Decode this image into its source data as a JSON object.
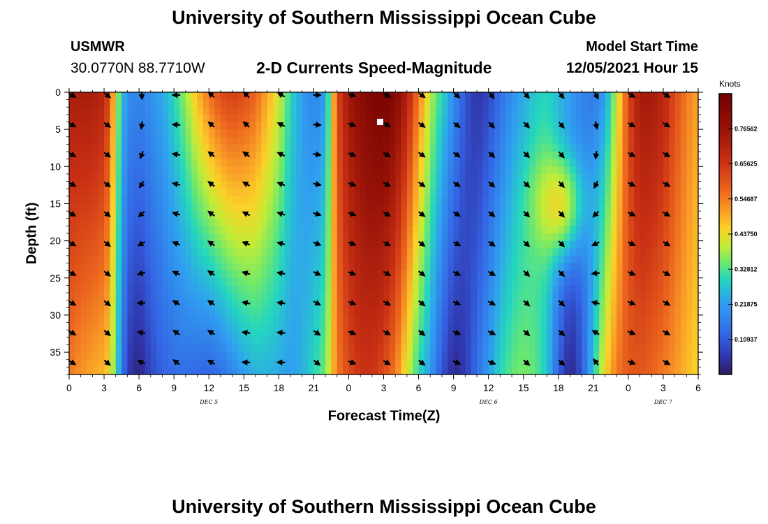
{
  "header": {
    "title": "University of Southern Mississippi Ocean Cube",
    "station": "USMWR",
    "coordinates": "30.0770N  88.7710W",
    "subtitle": "2-D Currents Speed-Magnitude",
    "model_start_label": "Model Start Time",
    "model_start_value": "12/05/2021 Hour 15"
  },
  "footer": {
    "title": "University of Southern Mississippi Ocean Cube"
  },
  "chart_data": {
    "type": "heatmap",
    "title": "2-D Currents Speed-Magnitude",
    "xlabel": "Forecast Time(Z)",
    "ylabel": "Depth (ft)",
    "x_range_hours": [
      0,
      54
    ],
    "x_ticks": [
      {
        "hour": 0,
        "label": "0"
      },
      {
        "hour": 3,
        "label": "3"
      },
      {
        "hour": 6,
        "label": "6"
      },
      {
        "hour": 9,
        "label": "9"
      },
      {
        "hour": 12,
        "label": "12"
      },
      {
        "hour": 15,
        "label": "15"
      },
      {
        "hour": 18,
        "label": "18"
      },
      {
        "hour": 21,
        "label": "21"
      },
      {
        "hour": 24,
        "label": "0"
      },
      {
        "hour": 27,
        "label": "3"
      },
      {
        "hour": 30,
        "label": "6"
      },
      {
        "hour": 33,
        "label": "9"
      },
      {
        "hour": 36,
        "label": "12"
      },
      {
        "hour": 39,
        "label": "15"
      },
      {
        "hour": 42,
        "label": "18"
      },
      {
        "hour": 45,
        "label": "21"
      },
      {
        "hour": 48,
        "label": "0"
      },
      {
        "hour": 51,
        "label": "3"
      },
      {
        "hour": 54,
        "label": "6"
      }
    ],
    "date_labels": [
      {
        "hour": 12,
        "label": "DEC 5"
      },
      {
        "hour": 36,
        "label": "DEC 6"
      },
      {
        "hour": 51,
        "label": "DEC 7"
      }
    ],
    "y_range_ft": [
      0,
      38
    ],
    "y_ticks": [
      0,
      5,
      10,
      15,
      20,
      25,
      30,
      35
    ],
    "colorbar": {
      "units": "Knots",
      "range": [
        0,
        0.875
      ],
      "tick_values": [
        0.109375,
        0.21875,
        0.328125,
        0.4375,
        0.546875,
        0.65625,
        0.765625
      ],
      "tick_labels": [
        "0.10937",
        "0.21875",
        "0.32812",
        "0.43750",
        "0.54687",
        "0.65625",
        "0.76562"
      ]
    },
    "speed_profile_knots": {
      "hours": [
        0,
        1,
        2,
        3,
        3.5,
        4,
        4.5,
        5,
        6,
        7,
        8,
        9,
        10,
        11,
        12,
        13,
        14,
        15,
        16,
        17,
        18,
        19,
        20,
        21,
        22,
        22.5,
        23,
        24,
        25,
        26,
        27,
        28,
        29,
        30,
        31,
        32,
        33,
        34,
        35,
        36,
        37,
        38,
        39,
        40,
        41,
        42,
        43,
        44,
        45,
        46,
        47,
        48,
        49,
        50,
        51,
        52,
        53,
        54
      ],
      "surface": [
        0.72,
        0.73,
        0.73,
        0.7,
        0.6,
        0.42,
        0.28,
        0.2,
        0.18,
        0.2,
        0.24,
        0.3,
        0.38,
        0.48,
        0.56,
        0.62,
        0.64,
        0.62,
        0.58,
        0.5,
        0.42,
        0.3,
        0.22,
        0.18,
        0.22,
        0.4,
        0.62,
        0.75,
        0.8,
        0.84,
        0.86,
        0.82,
        0.72,
        0.55,
        0.4,
        0.3,
        0.2,
        0.1,
        0.05,
        0.08,
        0.14,
        0.2,
        0.24,
        0.28,
        0.3,
        0.26,
        0.22,
        0.18,
        0.16,
        0.22,
        0.4,
        0.62,
        0.74,
        0.74,
        0.7,
        0.62,
        0.55,
        0.5
      ],
      "bottom": [
        0.55,
        0.52,
        0.5,
        0.48,
        0.45,
        0.32,
        0.18,
        0.06,
        0.02,
        0.08,
        0.12,
        0.14,
        0.14,
        0.13,
        0.12,
        0.14,
        0.18,
        0.22,
        0.25,
        0.25,
        0.24,
        0.22,
        0.25,
        0.3,
        0.35,
        0.45,
        0.55,
        0.62,
        0.66,
        0.66,
        0.62,
        0.55,
        0.42,
        0.3,
        0.22,
        0.1,
        0.03,
        0.06,
        0.14,
        0.22,
        0.3,
        0.34,
        0.36,
        0.34,
        0.28,
        0.12,
        0.02,
        0.1,
        0.28,
        0.45,
        0.55,
        0.6,
        0.6,
        0.58,
        0.55,
        0.52,
        0.48,
        0.45
      ]
    },
    "mid_depth_feature": {
      "center_hour": 42,
      "center_depth_ft": 15,
      "peak_knots": 0.48
    },
    "marker": {
      "hour": 26.7,
      "depth_ft": 4
    },
    "vector_hours": [
      0,
      3,
      6,
      9,
      12,
      15,
      18,
      21,
      24,
      27,
      30,
      33,
      36,
      39,
      42,
      45,
      48,
      51
    ],
    "vector_depths_ft": [
      0,
      4,
      8,
      12,
      16,
      20,
      24,
      28,
      32,
      36
    ],
    "vector_direction_deg": {
      "hours": [
        0,
        3,
        6,
        9,
        12,
        15,
        18,
        21,
        24,
        27,
        30,
        33,
        36,
        39,
        42,
        45,
        48,
        51
      ],
      "surface": [
        120,
        125,
        175,
        270,
        310,
        315,
        300,
        90,
        110,
        120,
        125,
        130,
        140,
        135,
        140,
        150,
        120,
        120
      ],
      "bottom": [
        120,
        130,
        300,
        310,
        300,
        270,
        270,
        130,
        110,
        120,
        130,
        110,
        110,
        130,
        130,
        330,
        110,
        120
      ]
    }
  }
}
